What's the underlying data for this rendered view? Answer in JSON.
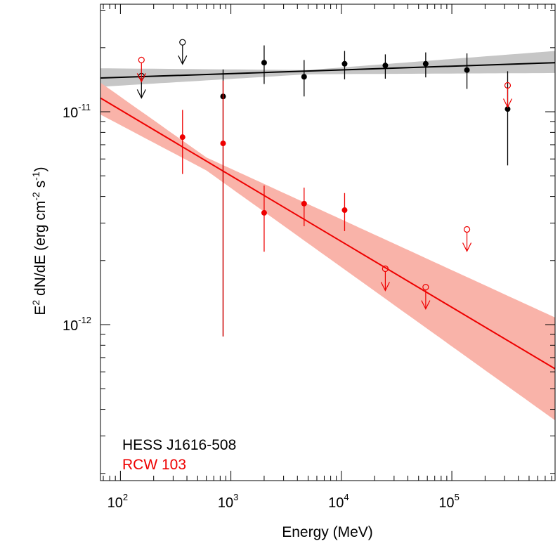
{
  "chart_data": {
    "type": "scatter",
    "xlabel": "Energy (MeV)",
    "ylabel": {
      "base": "E",
      "sup1": "2",
      "mid": " dN/dE (erg cm",
      "sup2": "-2",
      "mid2": " s",
      "sup3": "-1",
      "end": ")"
    },
    "x_scale": "log",
    "y_scale": "log",
    "xlim": [
      66,
      860000
    ],
    "ylim": [
      1.85e-13,
      3.2e-11
    ],
    "x_ticks": [
      {
        "base": "10",
        "exp": "2",
        "value": 100
      },
      {
        "base": "10",
        "exp": "3",
        "value": 1000
      },
      {
        "base": "10",
        "exp": "4",
        "value": 10000
      },
      {
        "base": "10",
        "exp": "5",
        "value": 100000
      }
    ],
    "y_ticks": [
      {
        "base": "10",
        "exp": "-12",
        "value": 1e-12
      },
      {
        "base": "10",
        "exp": "-11",
        "value": 1e-11
      }
    ],
    "grid": false,
    "legend_position": "bottom-left",
    "series": [
      {
        "name": "HESS J1616-508",
        "color": "#000000",
        "band_color": "#c6c6c6",
        "fit": {
          "e0": 66,
          "f0": 1.44e-11,
          "e1": 860000,
          "f1": 1.7e-11
        },
        "band": [
          {
            "x": 66,
            "lo": 1.31e-11,
            "hi": 1.6e-11
          },
          {
            "x": 5000,
            "lo": 1.5e-11,
            "hi": 1.57e-11
          },
          {
            "x": 860000,
            "lo": 1.52e-11,
            "hi": 1.93e-11
          }
        ],
        "points": [
          {
            "x": 850,
            "y": 1.18e-11,
            "ylo": 8.8e-13,
            "yhi": 1.58e-11
          },
          {
            "x": 2000,
            "y": 1.7e-11,
            "ylo": 1.35e-11,
            "yhi": 2.05e-11
          },
          {
            "x": 4600,
            "y": 1.46e-11,
            "ylo": 1.18e-11,
            "yhi": 1.75e-11
          },
          {
            "x": 10700,
            "y": 1.68e-11,
            "ylo": 1.42e-11,
            "yhi": 1.93e-11
          },
          {
            "x": 25000,
            "y": 1.65e-11,
            "ylo": 1.43e-11,
            "yhi": 1.86e-11
          },
          {
            "x": 58000,
            "y": 1.68e-11,
            "ylo": 1.45e-11,
            "yhi": 1.9e-11
          },
          {
            "x": 137000,
            "y": 1.57e-11,
            "ylo": 1.28e-11,
            "yhi": 1.88e-11
          },
          {
            "x": 320000,
            "y": 1.03e-11,
            "ylo": 5.6e-12,
            "yhi": 1.55e-11
          }
        ],
        "upper_limits": [
          {
            "x": 155,
            "y": 1.47e-11
          },
          {
            "x": 365,
            "y": 2.12e-11
          }
        ]
      },
      {
        "name": "RCW 103",
        "color": "#ee0000",
        "band_color": "#f9b3a9",
        "fit": {
          "e0": 66,
          "f0": 1.16e-11,
          "e1": 860000,
          "f1": 6.2e-13
        },
        "band": [
          {
            "x": 66,
            "lo": 9.7e-12,
            "hi": 1.37e-11
          },
          {
            "x": 600,
            "lo": 5.3e-12,
            "hi": 6.1e-12
          },
          {
            "x": 860000,
            "lo": 3.55e-13,
            "hi": 1.08e-12
          }
        ],
        "points": [
          {
            "x": 365,
            "y": 7.6e-12,
            "ylo": 5.1e-12,
            "yhi": 1.02e-11
          },
          {
            "x": 850,
            "y": 7.1e-12,
            "ylo": 8.8e-13,
            "yhi": 1.4e-11
          },
          {
            "x": 2000,
            "y": 3.35e-12,
            "ylo": 2.2e-12,
            "yhi": 4.5e-12
          },
          {
            "x": 4600,
            "y": 3.7e-12,
            "ylo": 2.9e-12,
            "yhi": 4.4e-12
          },
          {
            "x": 10700,
            "y": 3.45e-12,
            "ylo": 2.75e-12,
            "yhi": 4.15e-12
          }
        ],
        "upper_limits": [
          {
            "x": 155,
            "y": 1.75e-11
          },
          {
            "x": 25000,
            "y": 1.83e-12
          },
          {
            "x": 58000,
            "y": 1.5e-12
          },
          {
            "x": 137000,
            "y": 2.8e-12
          },
          {
            "x": 320000,
            "y": 1.33e-11
          }
        ]
      }
    ]
  }
}
